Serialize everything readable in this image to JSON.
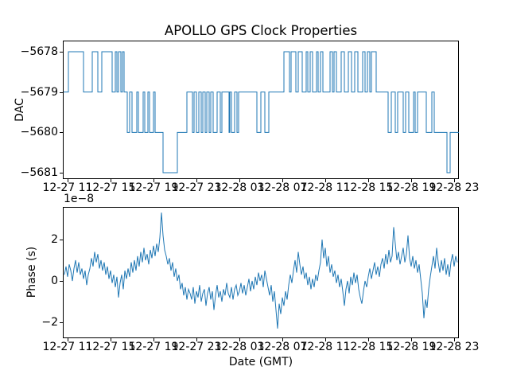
{
  "figure": {
    "background": "#ffffff",
    "line_color": "#1f77b4",
    "text_color": "#000000",
    "title": "APOLLO GPS Clock Properties"
  },
  "chart_data": [
    {
      "type": "line",
      "subtype": "step",
      "title": "APOLLO GPS Clock Properties",
      "xlabel": "",
      "ylabel": "DAC",
      "grid": false,
      "legend": "none",
      "yticks": [
        "−5678",
        "−5679",
        "−5680",
        "−5681"
      ],
      "ytick_values": [
        -5678,
        -5679,
        -5680,
        -5681
      ],
      "ylim": [
        -5681.3,
        -5677.7
      ],
      "xticks": [
        "12-27 11",
        "12-27 15",
        "12-27 19",
        "12-27 23",
        "12-28 03",
        "12-28 07",
        "12-28 11",
        "12-28 15",
        "12-28 19",
        "12-28 23"
      ],
      "x_unit": "axis px 0-498, ticks at 6+54k matching xticks (4-hour spacing)",
      "series": [
        {
          "name": "dac",
          "color": "#1f77b4",
          "steps": [
            [
              1,
              -5679
            ],
            [
              7,
              -5678
            ],
            [
              26,
              -5679
            ],
            [
              37,
              -5678
            ],
            [
              44,
              -5679
            ],
            [
              49,
              -5678
            ],
            [
              62,
              -5679
            ],
            [
              66,
              -5678
            ],
            [
              68,
              -5679
            ],
            [
              70,
              -5678
            ],
            [
              73,
              -5679
            ],
            [
              75,
              -5678
            ],
            [
              77,
              -5679
            ],
            [
              81,
              -5680
            ],
            [
              84,
              -5679
            ],
            [
              87,
              -5680
            ],
            [
              93,
              -5679
            ],
            [
              95,
              -5680
            ],
            [
              101,
              -5679
            ],
            [
              103,
              -5680
            ],
            [
              107,
              -5679
            ],
            [
              109,
              -5680
            ],
            [
              114,
              -5679
            ],
            [
              116,
              -5680
            ],
            [
              126,
              -5681
            ],
            [
              144,
              -5680
            ],
            [
              156,
              -5679
            ],
            [
              163,
              -5680
            ],
            [
              165,
              -5679
            ],
            [
              168,
              -5680
            ],
            [
              171,
              -5679
            ],
            [
              174,
              -5680
            ],
            [
              176,
              -5679
            ],
            [
              179,
              -5680
            ],
            [
              181,
              -5679
            ],
            [
              184,
              -5680
            ],
            [
              186,
              -5679
            ],
            [
              189,
              -5680
            ],
            [
              194,
              -5679
            ],
            [
              198,
              -5680
            ],
            [
              200,
              -5679
            ],
            [
              209,
              -5680
            ],
            [
              210,
              -5679
            ],
            [
              212,
              -5680
            ],
            [
              216,
              -5679
            ],
            [
              219,
              -5680
            ],
            [
              221,
              -5679
            ],
            [
              244,
              -5680
            ],
            [
              249,
              -5679
            ],
            [
              254,
              -5680
            ],
            [
              259,
              -5679
            ],
            [
              278,
              -5678
            ],
            [
              285,
              -5679
            ],
            [
              287,
              -5678
            ],
            [
              293,
              -5679
            ],
            [
              296,
              -5678
            ],
            [
              301,
              -5679
            ],
            [
              306,
              -5678
            ],
            [
              308,
              -5679
            ],
            [
              311,
              -5678
            ],
            [
              314,
              -5679
            ],
            [
              319,
              -5678
            ],
            [
              321,
              -5679
            ],
            [
              324,
              -5678
            ],
            [
              327,
              -5679
            ],
            [
              336,
              -5678
            ],
            [
              339,
              -5679
            ],
            [
              341,
              -5678
            ],
            [
              344,
              -5679
            ],
            [
              350,
              -5678
            ],
            [
              354,
              -5679
            ],
            [
              359,
              -5678
            ],
            [
              363,
              -5679
            ],
            [
              367,
              -5678
            ],
            [
              371,
              -5679
            ],
            [
              377,
              -5678
            ],
            [
              380,
              -5679
            ],
            [
              383,
              -5678
            ],
            [
              386,
              -5679
            ],
            [
              388,
              -5678
            ],
            [
              394,
              -5679
            ],
            [
              409,
              -5680
            ],
            [
              413,
              -5679
            ],
            [
              418,
              -5680
            ],
            [
              421,
              -5679
            ],
            [
              428,
              -5680
            ],
            [
              431,
              -5679
            ],
            [
              435,
              -5680
            ],
            [
              441,
              -5679
            ],
            [
              443,
              -5680
            ],
            [
              446,
              -5679
            ],
            [
              457,
              -5680
            ],
            [
              464,
              -5679
            ],
            [
              467,
              -5680
            ],
            [
              483,
              -5681
            ],
            [
              487,
              -5680
            ],
            [
              498,
              -5680
            ]
          ]
        }
      ]
    },
    {
      "type": "line",
      "subtype": "noisy",
      "title": "",
      "xlabel": "Date (GMT)",
      "ylabel": "Phase (s)",
      "offset_text": "1e−8",
      "grid": false,
      "legend": "none",
      "yticks": [
        "2",
        "0",
        "−2"
      ],
      "ytick_values": [
        2,
        0,
        -2
      ],
      "ylim": [
        -2.8,
        3.6
      ],
      "y_scale": 1e-08,
      "xticks": [
        "12-27 11",
        "12-27 15",
        "12-27 19",
        "12-27 23",
        "12-28 03",
        "12-28 07",
        "12-28 11",
        "12-28 15",
        "12-28 19",
        "12-28 23"
      ],
      "series": [
        {
          "name": "phase",
          "color": "#1f77b4",
          "values_1e8": [
            0.3,
            0.7,
            0.2,
            0.8,
            0.5,
            0.0,
            0.6,
            1.0,
            0.4,
            0.9,
            0.3,
            0.6,
            0.1,
            0.5,
            -0.2,
            0.3,
            0.6,
            1.1,
            0.7,
            1.4,
            0.9,
            1.3,
            0.6,
            1.0,
            0.5,
            0.9,
            0.3,
            0.7,
            0.1,
            0.5,
            -0.1,
            0.3,
            -0.3,
            0.2,
            -0.8,
            -0.1,
            0.3,
            -0.4,
            0.5,
            0.1,
            0.6,
            0.2,
            0.9,
            0.4,
            1.0,
            0.5,
            1.2,
            0.7,
            1.4,
            0.9,
            1.6,
            1.0,
            1.3,
            0.8,
            1.5,
            1.1,
            1.7,
            1.2,
            1.8,
            1.4,
            2.1,
            3.3,
            2.2,
            1.5,
            1.2,
            0.8,
            1.1,
            0.5,
            0.9,
            0.2,
            0.6,
            0.0,
            0.3,
            -0.4,
            -0.1,
            -0.7,
            -0.3,
            -0.9,
            -0.4,
            -0.6,
            -0.9,
            -0.3,
            -1.1,
            -0.5,
            -0.8,
            -0.2,
            -1.0,
            -0.6,
            -0.4,
            -1.2,
            -0.6,
            -0.3,
            -0.9,
            -0.5,
            -1.4,
            -0.7,
            -0.2,
            -0.8,
            -0.5,
            -1.0,
            -0.4,
            -0.7,
            -0.1,
            -0.6,
            -0.8,
            -0.3,
            -0.9,
            -0.4,
            -0.2,
            -0.7,
            -0.5,
            -0.1,
            -0.6,
            -0.2,
            -0.7,
            -0.3,
            0.1,
            -0.5,
            0.0,
            -0.4,
            0.2,
            -0.2,
            0.4,
            0.0,
            0.3,
            -0.3,
            0.5,
            0.1,
            -0.3,
            -0.7,
            -0.2,
            -1.0,
            -0.5,
            -1.4,
            -2.3,
            -1.1,
            -1.6,
            -0.8,
            -1.2,
            -0.5,
            -0.9,
            -0.2,
            0.3,
            -0.1,
            0.5,
            1.0,
            0.4,
            1.4,
            0.8,
            0.3,
            0.7,
            0.1,
            0.4,
            -0.2,
            0.2,
            -0.4,
            0.1,
            -0.3,
            0.3,
            0.0,
            0.5,
            0.9,
            2.0,
            1.1,
            1.6,
            0.7,
            1.2,
            0.4,
            0.8,
            0.2,
            0.5,
            -0.1,
            0.3,
            -0.3,
            0.1,
            -0.5,
            -1.2,
            -0.4,
            0.0,
            -0.6,
            0.2,
            -0.2,
            0.4,
            -0.1,
            0.3,
            -0.4,
            -0.8,
            -1.1,
            -0.5,
            0.0,
            -0.3,
            0.2,
            0.6,
            0.1,
            0.5,
            0.9,
            0.3,
            0.7,
            0.2,
            0.8,
            1.1,
            0.6,
            1.3,
            0.8,
            1.5,
            0.9,
            1.2,
            2.6,
            1.8,
            1.0,
            1.4,
            0.8,
            1.2,
            1.6,
            0.9,
            1.3,
            2.2,
            1.1,
            0.7,
            1.2,
            0.6,
            1.0,
            0.4,
            0.8,
            0.1,
            -0.6,
            -1.8,
            -0.9,
            -1.3,
            -0.4,
            0.2,
            0.7,
            1.2,
            0.6,
            1.6,
            0.9,
            0.4,
            1.0,
            0.5,
            1.1,
            0.3,
            0.8,
            0.2,
            0.9,
            1.3,
            0.7,
            1.2,
            0.9
          ]
        }
      ]
    }
  ]
}
